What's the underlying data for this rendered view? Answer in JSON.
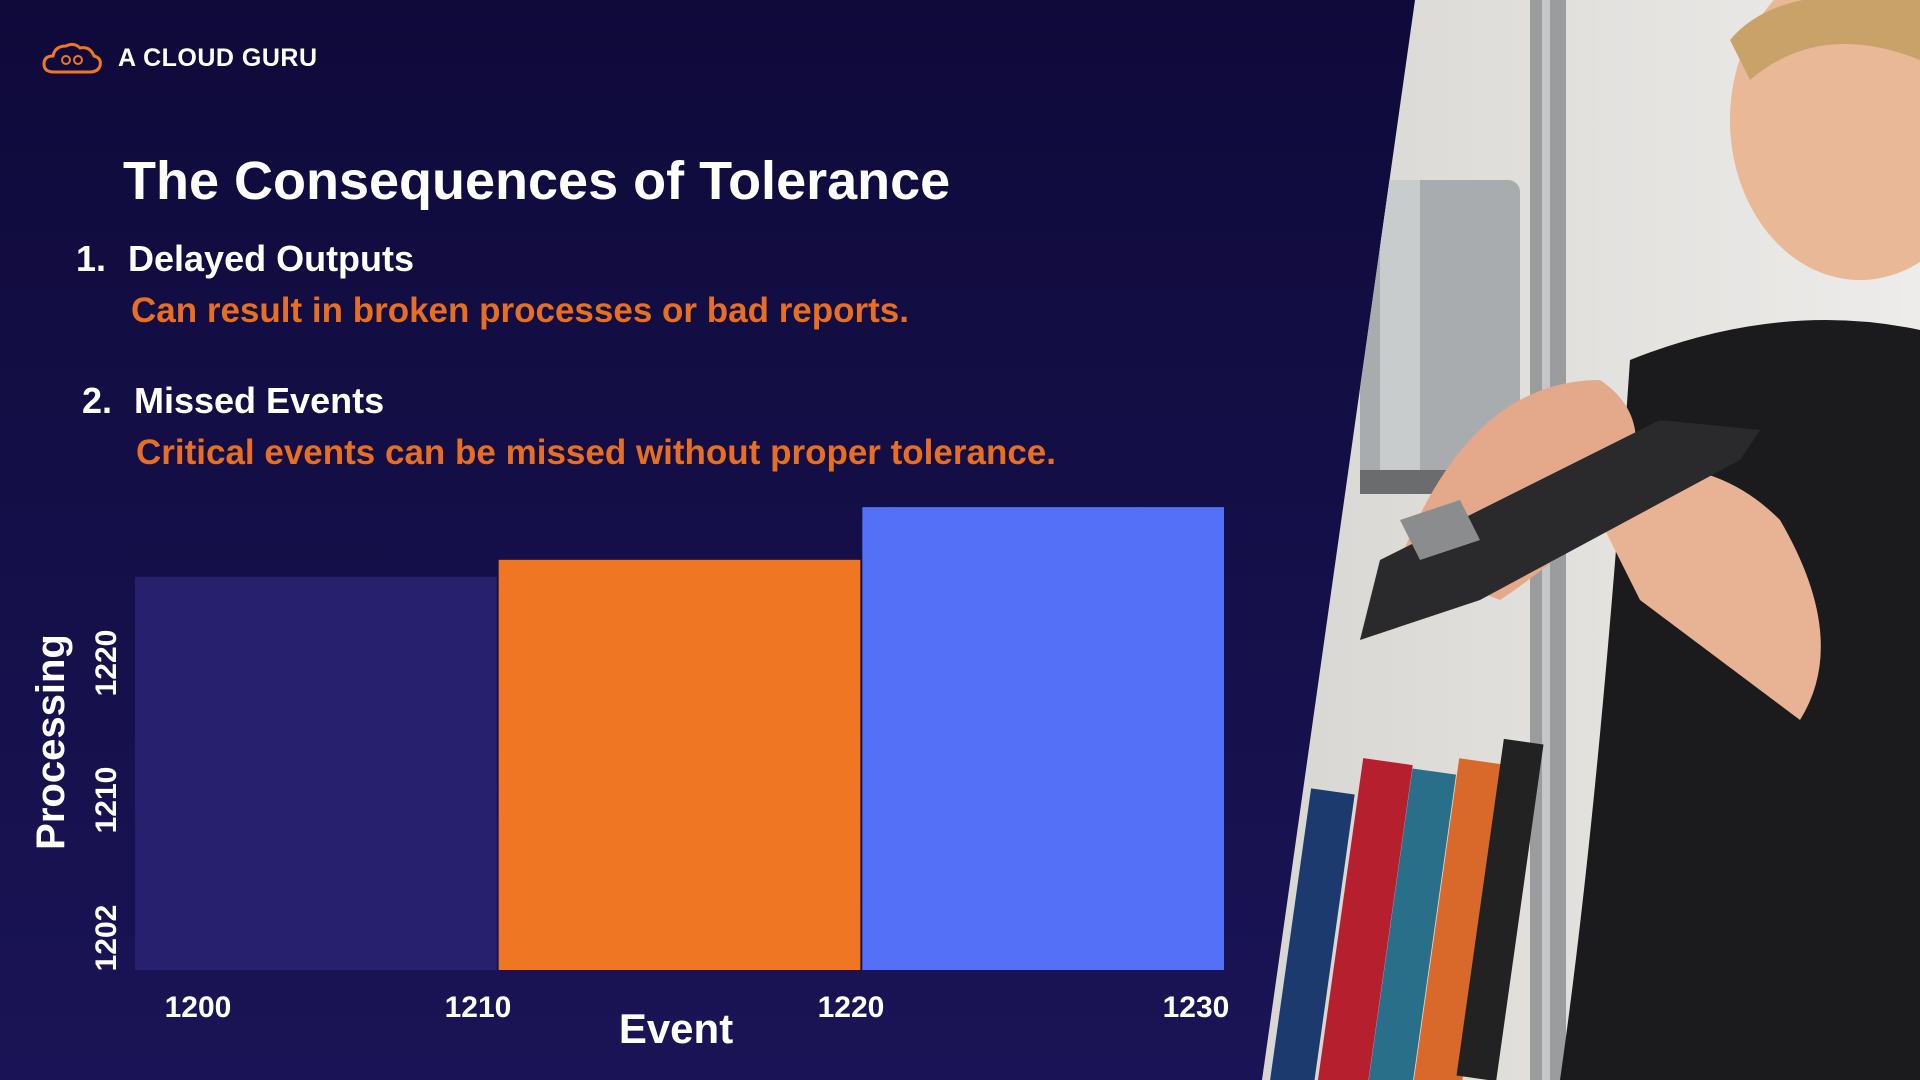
{
  "brand": {
    "name": "A CLOUD GURU",
    "logo_icon": "cloud-logo-icon"
  },
  "slide": {
    "title": "The Consequences of Tolerance",
    "items": [
      {
        "number": "1.",
        "heading": "Delayed Outputs",
        "description": "Can result in broken processes or bad reports."
      },
      {
        "number": "2.",
        "heading": "Missed Events",
        "description": "Critical events can be missed without proper tolerance."
      }
    ]
  },
  "colors": {
    "background": "#130d45",
    "accent_orange": "#ef7622",
    "bar_dark": "#27206e",
    "bar_orange": "#ef7622",
    "bar_blue": "#5470f7"
  },
  "chart_data": {
    "type": "bar",
    "xlabel": "Event",
    "ylabel": "Processing",
    "x_ticks": [
      "1200",
      "1210",
      "1220",
      "1230"
    ],
    "y_ticks": [
      "1202",
      "1210",
      "1220"
    ],
    "bars": [
      {
        "x_start": 1200,
        "x_end": 1210,
        "value": 1227.6,
        "color": "#27206e"
      },
      {
        "x_start": 1210,
        "x_end": 1220,
        "value": 1228.8,
        "color": "#ef7622"
      },
      {
        "x_start": 1220,
        "x_end": 1230,
        "value": 1232.5,
        "color": "#5470f7"
      }
    ],
    "xlim": [
      1200,
      1230
    ],
    "ylim": [
      1200,
      1233
    ],
    "grid": false,
    "legend": "none"
  }
}
